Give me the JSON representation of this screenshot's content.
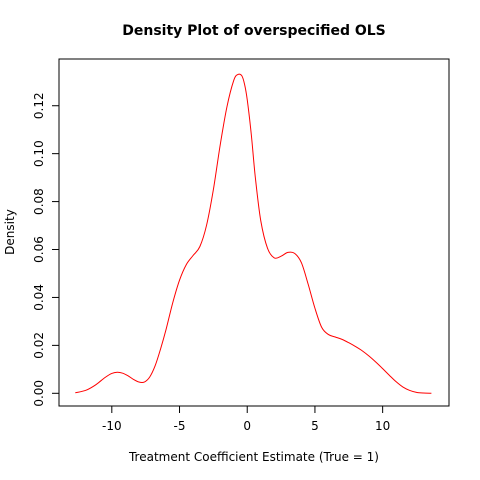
{
  "chart_data": {
    "type": "line",
    "title": "Density Plot of overspecified OLS",
    "xlabel": "Treatment Coefficient Estimate (True = 1)",
    "ylabel": "Density",
    "xlim": [
      -13.9,
      14.9
    ],
    "ylim": [
      -0.0053,
      0.1395
    ],
    "x_ticks": [
      -10,
      -5,
      0,
      5,
      10
    ],
    "x_tick_labels": [
      "-10",
      "-5",
      "0",
      "5",
      "10"
    ],
    "y_ticks": [
      0.0,
      0.02,
      0.04,
      0.06,
      0.08,
      0.1,
      0.12
    ],
    "y_tick_labels": [
      "0.00",
      "0.02",
      "0.04",
      "0.06",
      "0.08",
      "0.10",
      "0.12"
    ],
    "grid": false,
    "legend": "none",
    "series": [
      {
        "color": "#ff0000",
        "x": [
          -12.7,
          -11.9,
          -11.2,
          -10.5,
          -10.0,
          -9.6,
          -9.2,
          -8.8,
          -8.4,
          -8.0,
          -7.6,
          -7.2,
          -6.8,
          -6.4,
          -6.0,
          -5.5,
          -5.0,
          -4.5,
          -4.0,
          -3.5,
          -3.0,
          -2.5,
          -2.0,
          -1.5,
          -1.0,
          -0.7,
          -0.4,
          -0.2,
          0.0,
          0.3,
          0.6,
          1.0,
          1.5,
          2.0,
          2.5,
          3.0,
          3.5,
          4.0,
          4.5,
          5.0,
          5.5,
          6.0,
          6.5,
          7.0,
          7.5,
          8.0,
          8.5,
          9.0,
          9.5,
          10.0,
          10.5,
          11.0,
          11.5,
          12.0,
          12.5,
          13.0,
          13.6
        ],
        "y": [
          0.0002,
          0.0013,
          0.0035,
          0.0066,
          0.0083,
          0.0088,
          0.0084,
          0.0073,
          0.0058,
          0.0047,
          0.0047,
          0.0068,
          0.0115,
          0.0185,
          0.0265,
          0.0378,
          0.0472,
          0.0537,
          0.0575,
          0.0612,
          0.0702,
          0.085,
          0.1035,
          0.1195,
          0.1305,
          0.133,
          0.1325,
          0.129,
          0.1225,
          0.108,
          0.09,
          0.072,
          0.0605,
          0.0565,
          0.0572,
          0.0588,
          0.0584,
          0.0545,
          0.0455,
          0.0355,
          0.0275,
          0.0245,
          0.0235,
          0.0225,
          0.0211,
          0.0195,
          0.0177,
          0.0155,
          0.013,
          0.0103,
          0.0075,
          0.0048,
          0.0026,
          0.0012,
          0.0004,
          0.0001,
          0.0
        ]
      }
    ]
  }
}
